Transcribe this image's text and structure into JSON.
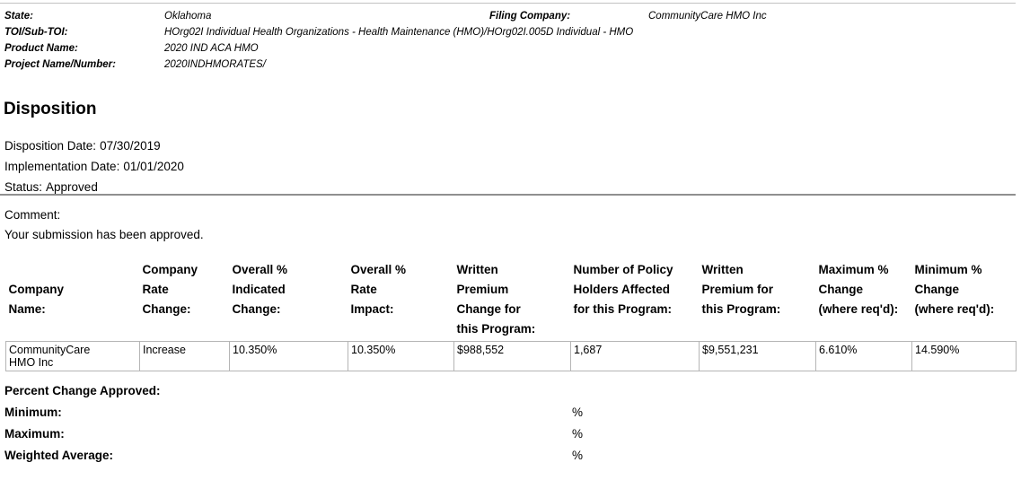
{
  "colors": {
    "hairline_gray": "#c2c2c2",
    "rule_gray": "#8f8f8f",
    "table_border_gray": "#b5b5b5"
  },
  "meta": {
    "state_label": "State:",
    "state_value": "Oklahoma",
    "filing_company_label": "Filing Company:",
    "filing_company_value": "CommunityCare HMO Inc",
    "toi_label": "TOI/Sub-TOI:",
    "toi_value": "HOrg02I Individual Health Organizations - Health Maintenance (HMO)/HOrg02I.005D Individual - HMO",
    "product_label": "Product Name:",
    "product_value": "2020 IND ACA HMO",
    "project_label": "Project Name/Number:",
    "project_value": "2020INDHMORATES/"
  },
  "disposition": {
    "title": "Disposition",
    "date_label": "Disposition Date:",
    "date_value": "07/30/2019",
    "implementation_label": "Implementation Date:",
    "implementation_value": "01/01/2020",
    "status_label": "Status:",
    "status_value": "Approved",
    "comment_label": "Comment:",
    "comment_text": "Your submission has been approved."
  },
  "table": {
    "columns": [
      {
        "lines": [
          "",
          "Company",
          "Name:"
        ]
      },
      {
        "lines": [
          "Company",
          "Rate",
          "Change:"
        ]
      },
      {
        "lines": [
          "Overall %",
          "Indicated",
          "Change:"
        ]
      },
      {
        "lines": [
          "Overall %",
          "Rate",
          "Impact:"
        ]
      },
      {
        "lines": [
          "Written",
          "Premium",
          "Change for",
          "this Program:"
        ]
      },
      {
        "lines": [
          "Number of Policy",
          "Holders Affected",
          "for this Program:"
        ]
      },
      {
        "lines": [
          "Written",
          "Premium for",
          "this Program:"
        ]
      },
      {
        "lines": [
          "Maximum %",
          "Change",
          "(where req'd):"
        ]
      },
      {
        "lines": [
          "Minimum %",
          "Change",
          "(where req'd):"
        ]
      }
    ],
    "row": {
      "company_name_lines": [
        "CommunityCare",
        "HMO Inc"
      ],
      "company_rate_change": "Increase",
      "overall_indicated_change": "10.350%",
      "overall_rate_impact": "10.350%",
      "written_premium_change": "$988,552",
      "policy_holders_affected": "1,687",
      "written_premium": "$9,551,231",
      "maximum_change": "6.610%",
      "minimum_change": "14.590%"
    }
  },
  "approved": {
    "title": "Percent Change Approved:",
    "rows": [
      {
        "label": "Minimum:",
        "unit": "%"
      },
      {
        "label": "Maximum:",
        "unit": "%"
      },
      {
        "label": "Weighted Average:",
        "unit": "%"
      }
    ]
  }
}
